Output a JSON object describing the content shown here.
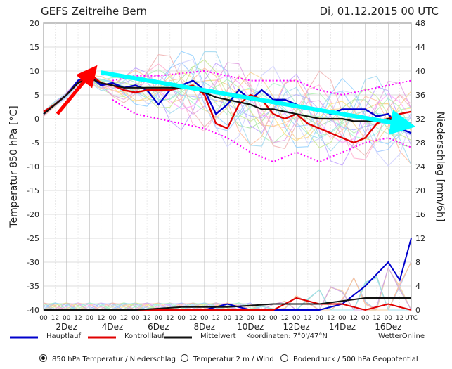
{
  "chart_data": {
    "type": "line",
    "title": "GEFS Zeitreihe Bern",
    "datetime": "Di, 01.12.2015 00 UTC",
    "ylabel_left": "Temperatur 850 hPa [°C]",
    "ylabel_right": "Niederschlag [mm/6h]",
    "ylim_left": [
      -40,
      20
    ],
    "ylim_right": [
      0,
      48
    ],
    "left_ticks": [
      20,
      15,
      10,
      5,
      0,
      -5,
      -10,
      -15,
      -20,
      -25,
      -30,
      -35,
      -40
    ],
    "right_ticks": [
      48,
      44,
      40,
      36,
      32,
      28,
      24,
      20,
      16,
      12,
      8,
      4,
      0
    ],
    "x_hour_labels": [
      "00",
      "12",
      "00",
      "12",
      "00",
      "12",
      "00",
      "12",
      "00",
      "12",
      "00",
      "12",
      "00",
      "12",
      "00",
      "12",
      "00",
      "12",
      "00",
      "12",
      "00",
      "12",
      "00",
      "12",
      "00",
      "12",
      "00",
      "12",
      "00",
      "12",
      "00",
      "12",
      "UTC"
    ],
    "x_day_labels": [
      {
        "label": "2Dez",
        "step": 2
      },
      {
        "label": "4Dez",
        "step": 6
      },
      {
        "label": "6Dez",
        "step": 10
      },
      {
        "label": "8Dez",
        "step": 14
      },
      {
        "label": "10Dez",
        "step": 18
      },
      {
        "label": "12Dez",
        "step": 22
      },
      {
        "label": "14Dez",
        "step": 26
      },
      {
        "label": "16Dez",
        "step": 30
      }
    ],
    "legend": [
      {
        "label": "Hauptlauf",
        "color": "#0000cc"
      },
      {
        "label": "Kontrolllauf",
        "color": "#e00000"
      },
      {
        "label": "Mittelwert",
        "color": "#111111"
      }
    ],
    "coordinates_label": "Koordinaten: 7°0'/47°N",
    "source_label": "WetterOnline",
    "series": [
      {
        "name": "Hauptlauf",
        "color": "#0000cc",
        "x": [
          0,
          1,
          2,
          3,
          4,
          5,
          6,
          7,
          8,
          9,
          10,
          11,
          12,
          13,
          14,
          15,
          16,
          17,
          18,
          19,
          20,
          21,
          22,
          23,
          24,
          25,
          26,
          27,
          28,
          29,
          30,
          31,
          32
        ],
        "values": [
          1,
          3,
          5,
          8,
          9,
          7,
          7.5,
          6.5,
          7,
          6,
          3,
          6,
          7,
          8,
          6,
          1,
          3,
          6,
          4,
          6,
          4,
          4,
          3,
          2,
          2,
          1,
          2,
          2,
          2,
          0.5,
          1,
          -2,
          -3
        ]
      },
      {
        "name": "Kontrolllauf",
        "color": "#e00000",
        "x": [
          0,
          1,
          2,
          3,
          4,
          5,
          6,
          7,
          8,
          9,
          10,
          11,
          12,
          13,
          14,
          15,
          16,
          17,
          18,
          19,
          20,
          21,
          22,
          23,
          24,
          25,
          26,
          27,
          28,
          29,
          30,
          31,
          32
        ],
        "values": [
          1.5,
          3,
          5,
          7.5,
          9.5,
          7.5,
          7,
          6,
          5.5,
          6,
          6,
          6,
          6.5,
          7,
          5,
          -1,
          -2,
          3,
          5,
          4,
          1,
          0,
          1,
          -1,
          -2,
          -3,
          -4,
          -5,
          -4,
          -1,
          0,
          1,
          1.5
        ]
      },
      {
        "name": "Mittelwert",
        "color": "#111111",
        "x": [
          0,
          1,
          2,
          3,
          4,
          5,
          6,
          7,
          8,
          9,
          10,
          11,
          12,
          13,
          14,
          15,
          16,
          17,
          18,
          19,
          20,
          21,
          22,
          23,
          24,
          25,
          26,
          27,
          28,
          29,
          30,
          31,
          32
        ],
        "values": [
          1,
          3,
          5,
          7.5,
          8.5,
          7.5,
          7,
          6.5,
          6.5,
          6.5,
          6.5,
          6.5,
          6.5,
          6.5,
          5.5,
          4.5,
          4,
          3.5,
          3,
          2,
          2,
          1.5,
          1,
          0.5,
          0,
          0,
          0,
          -0.5,
          -0.5,
          -0.5,
          0,
          -0.5,
          -1
        ]
      },
      {
        "name": "Ensemble Max",
        "color": "#ff00ff",
        "x": [
          6,
          8,
          10,
          12,
          14,
          16,
          18,
          20,
          22,
          24,
          26,
          28,
          30,
          32
        ],
        "values": [
          8,
          9,
          9,
          9.5,
          10,
          9,
          8,
          8,
          8,
          6,
          5,
          6,
          7,
          8
        ]
      },
      {
        "name": "Ensemble Min",
        "color": "#ff00ff",
        "x": [
          6,
          8,
          10,
          12,
          14,
          16,
          18,
          20,
          22,
          24,
          26,
          28,
          30,
          32
        ],
        "values": [
          4,
          1,
          0,
          -1,
          -2,
          -4,
          -7,
          -9,
          -7,
          -9,
          -7,
          -5,
          -4,
          -6
        ]
      }
    ],
    "precipitation": {
      "unit": "mm/6h",
      "hauptlauf": {
        "x": [
          0,
          4,
          8,
          12,
          14,
          16,
          18,
          20,
          22,
          24,
          26,
          28,
          30,
          31,
          32
        ],
        "values": [
          0,
          0,
          0,
          0,
          0,
          1,
          0,
          0,
          0,
          0,
          1,
          4,
          8,
          5,
          12
        ]
      },
      "kontrolllauf": {
        "x": [
          0,
          4,
          8,
          12,
          16,
          20,
          22,
          24,
          26,
          28,
          30,
          32
        ],
        "values": [
          0,
          0,
          0,
          0,
          0,
          0,
          2,
          1,
          1,
          0,
          1,
          0
        ]
      },
      "mittelwert": {
        "x": [
          0,
          4,
          8,
          12,
          16,
          20,
          24,
          28,
          32
        ],
        "values": [
          0,
          0,
          0,
          0.5,
          0.5,
          1,
          1,
          2,
          2
        ]
      }
    },
    "annotations": [
      {
        "type": "arrow",
        "color": "#ff0000",
        "from": [
          1.2,
          1
        ],
        "to": [
          4.1,
          9.5
        ]
      },
      {
        "type": "arrow",
        "color": "#00ffff",
        "from": [
          5.0,
          9.7
        ],
        "to": [
          31.3,
          -1.2
        ]
      }
    ],
    "grid": true
  },
  "controls": {
    "options": [
      {
        "label": "850 hPa Temperatur / Niederschlag",
        "selected": true
      },
      {
        "label": "Temperatur 2 m / Wind",
        "selected": false
      },
      {
        "label": "Bodendruck / 500 hPa Geopotential",
        "selected": false
      }
    ]
  }
}
